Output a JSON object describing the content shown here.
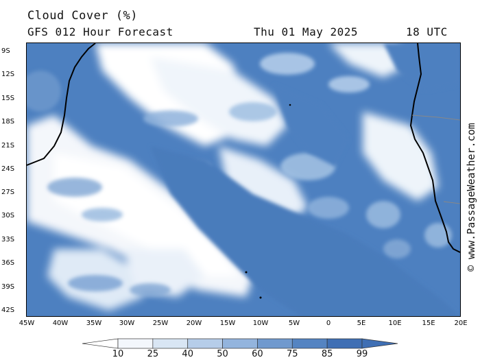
{
  "header": {
    "title": "Cloud Cover (%)",
    "subtitle": "GFS 012 Hour Forecast",
    "date": "Thu 01 May 2025",
    "time": "18 UTC"
  },
  "map": {
    "lat_labels": [
      "9S",
      "12S",
      "15S",
      "18S",
      "21S",
      "24S",
      "27S",
      "30S",
      "33S",
      "36S",
      "39S",
      "42S"
    ],
    "lon_labels": [
      "45W",
      "40W",
      "35W",
      "30W",
      "25W",
      "20W",
      "15W",
      "10W",
      "5W",
      "0",
      "5E",
      "10E",
      "15E",
      "20E"
    ],
    "colors": {
      "ocean_cloud_low": "#ffffff",
      "mid": "#9ec0e4",
      "high": "#4a7fbf",
      "coast": "#000000"
    }
  },
  "watermark": "© www.PassageWeather.com",
  "colorbar": {
    "labels": [
      "10",
      "25",
      "40",
      "50",
      "60",
      "75",
      "85",
      "99"
    ],
    "colors": [
      "#ffffff",
      "#f3f7fc",
      "#d9e6f4",
      "#b6cde9",
      "#93b4dd",
      "#7099ce",
      "#5484c2",
      "#3f6fb4"
    ]
  }
}
